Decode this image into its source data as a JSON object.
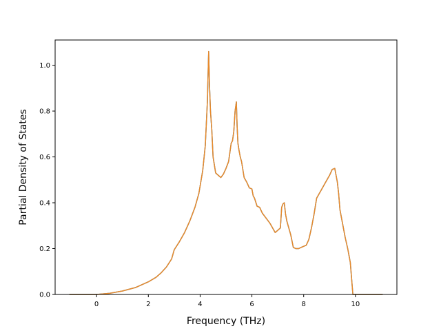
{
  "chart_data": {
    "type": "line",
    "title": "",
    "xlabel": "Frequency (THz)",
    "ylabel": "Partial Density of States",
    "xlim": [
      -1.6,
      11.6
    ],
    "ylim": [
      0.0,
      1.11
    ],
    "xticks": [
      0,
      2,
      4,
      6,
      8,
      10
    ],
    "yticks": [
      0.0,
      0.2,
      0.4,
      0.6,
      0.8,
      1.0
    ],
    "xtick_labels": [
      "0",
      "2",
      "4",
      "6",
      "8",
      "10"
    ],
    "ytick_labels": [
      "0.0",
      "0.2",
      "0.4",
      "0.6",
      "0.8",
      "1.0"
    ],
    "grid": false,
    "series": [
      {
        "color_under": "#1f77b4",
        "color": "#e98a2b",
        "x": [
          -1.05,
          -0.5,
          0.0,
          0.5,
          1.0,
          1.5,
          2.0,
          2.3,
          2.5,
          2.7,
          2.9,
          3.0,
          3.2,
          3.4,
          3.6,
          3.8,
          3.95,
          4.1,
          4.2,
          4.28,
          4.33,
          4.36,
          4.4,
          4.45,
          4.5,
          4.6,
          4.7,
          4.8,
          4.9,
          5.0,
          5.1,
          5.2,
          5.25,
          5.3,
          5.35,
          5.4,
          5.43,
          5.46,
          5.5,
          5.55,
          5.6,
          5.7,
          5.8,
          5.9,
          6.0,
          6.05,
          6.1,
          6.2,
          6.3,
          6.4,
          6.5,
          6.7,
          6.9,
          7.0,
          7.1,
          7.15,
          7.2,
          7.25,
          7.3,
          7.35,
          7.4,
          7.5,
          7.6,
          7.7,
          7.8,
          7.9,
          8.0,
          8.1,
          8.2,
          8.3,
          8.4,
          8.5,
          8.6,
          8.7,
          8.8,
          8.9,
          9.0,
          9.1,
          9.2,
          9.3,
          9.35,
          9.4,
          9.5,
          9.6,
          9.7,
          9.8,
          9.9,
          10.0,
          10.05,
          10.1,
          10.5,
          11.05
        ],
        "y": [
          0.0,
          0.0,
          0.0,
          0.005,
          0.015,
          0.03,
          0.055,
          0.075,
          0.095,
          0.12,
          0.155,
          0.195,
          0.23,
          0.27,
          0.32,
          0.38,
          0.44,
          0.54,
          0.65,
          0.84,
          1.06,
          0.92,
          0.8,
          0.72,
          0.6,
          0.53,
          0.52,
          0.51,
          0.525,
          0.55,
          0.58,
          0.66,
          0.67,
          0.71,
          0.8,
          0.84,
          0.73,
          0.66,
          0.63,
          0.6,
          0.58,
          0.51,
          0.49,
          0.465,
          0.46,
          0.43,
          0.42,
          0.385,
          0.38,
          0.355,
          0.34,
          0.31,
          0.27,
          0.28,
          0.29,
          0.38,
          0.395,
          0.4,
          0.35,
          0.32,
          0.3,
          0.26,
          0.205,
          0.2,
          0.2,
          0.205,
          0.21,
          0.215,
          0.24,
          0.29,
          0.35,
          0.42,
          0.44,
          0.46,
          0.48,
          0.5,
          0.52,
          0.545,
          0.55,
          0.49,
          0.44,
          0.37,
          0.31,
          0.25,
          0.2,
          0.14,
          0.0,
          0.0,
          0.0,
          0.0,
          0.0,
          0.0
        ]
      }
    ]
  }
}
